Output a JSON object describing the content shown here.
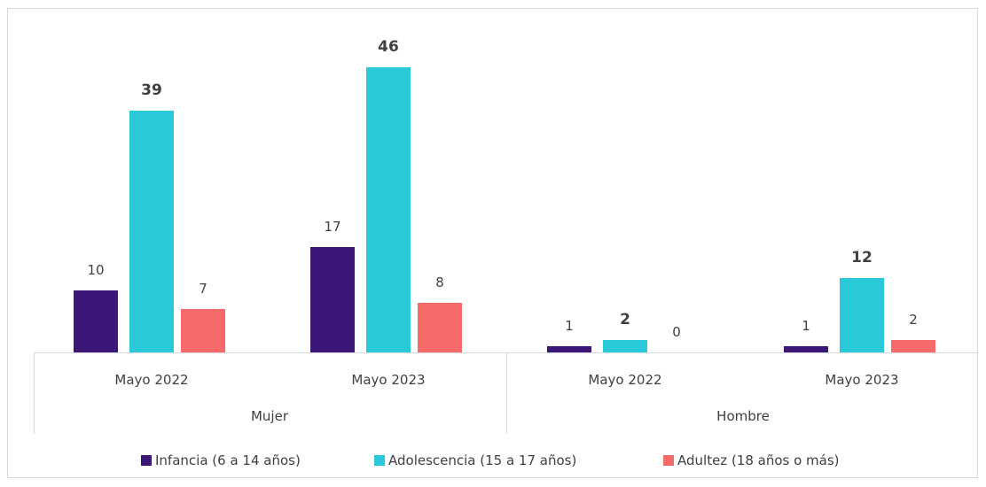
{
  "chart_data": {
    "type": "bar",
    "title": "",
    "xlabel": "",
    "ylabel": "",
    "ylim": [
      0,
      50
    ],
    "grid": false,
    "legend_position": "bottom",
    "groups": [
      {
        "label": "Mujer",
        "categories": [
          "Mayo 2022",
          "Mayo 2023"
        ]
      },
      {
        "label": "Hombre",
        "categories": [
          "Mayo 2022",
          "Mayo 2023"
        ]
      }
    ],
    "categories": [
      "Mayo 2022",
      "Mayo 2023",
      "Mayo 2022",
      "Mayo 2023"
    ],
    "series": [
      {
        "name": "Infancia (6 a 14 años)",
        "color": "#3b1878",
        "values": [
          10,
          17,
          1,
          1
        ],
        "labels": [
          "10",
          "17",
          "1",
          "1"
        ],
        "label_bold": false
      },
      {
        "name": "Adolescencia (15 a 17 años)",
        "color": "#29c9da",
        "values": [
          39,
          46,
          2,
          12
        ],
        "labels": [
          "39",
          "46",
          "2",
          "12"
        ],
        "label_bold": true
      },
      {
        "name": "Adultez (18 años o más)",
        "color": "#f76a6a",
        "values": [
          7,
          8,
          0,
          2
        ],
        "labels": [
          "7",
          "8",
          "0",
          "2"
        ],
        "label_bold": false
      }
    ]
  }
}
